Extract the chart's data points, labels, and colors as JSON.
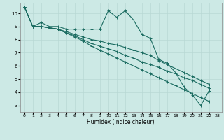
{
  "xlabel": "Humidex (Indice chaleur)",
  "xlim": [
    -0.5,
    23.5
  ],
  "ylim": [
    2.5,
    10.8
  ],
  "xticks": [
    0,
    1,
    2,
    3,
    4,
    5,
    6,
    7,
    8,
    9,
    10,
    11,
    12,
    13,
    14,
    15,
    16,
    17,
    18,
    19,
    20,
    21,
    22,
    23
  ],
  "yticks": [
    3,
    4,
    5,
    6,
    7,
    8,
    9,
    10
  ],
  "bg_color": "#cce9e5",
  "line_color": "#1a6b60",
  "grid_color": "#b8d8d4",
  "series": [
    [
      10.5,
      9.0,
      9.3,
      9.0,
      9.0,
      8.8,
      8.8,
      8.8,
      8.8,
      8.8,
      10.2,
      9.7,
      10.2,
      9.5,
      8.4,
      8.1,
      6.5,
      6.2,
      5.5,
      4.4,
      3.8,
      3.0,
      4.1
    ],
    [
      10.5,
      9.0,
      9.0,
      8.9,
      8.8,
      8.6,
      8.4,
      8.2,
      8.0,
      7.9,
      7.7,
      7.6,
      7.4,
      7.2,
      7.0,
      6.8,
      6.4,
      6.1,
      5.8,
      5.5,
      5.2,
      4.9,
      4.6
    ],
    [
      10.5,
      9.0,
      9.0,
      8.9,
      8.8,
      8.5,
      8.3,
      8.0,
      7.7,
      7.5,
      7.3,
      7.1,
      6.8,
      6.6,
      6.3,
      6.1,
      5.9,
      5.6,
      5.4,
      5.1,
      4.9,
      4.6,
      4.3
    ],
    [
      10.5,
      9.0,
      9.0,
      8.9,
      8.8,
      8.5,
      8.2,
      7.9,
      7.5,
      7.2,
      6.9,
      6.6,
      6.3,
      6.0,
      5.7,
      5.4,
      5.1,
      4.8,
      4.5,
      4.2,
      3.9,
      3.6,
      3.3
    ]
  ]
}
